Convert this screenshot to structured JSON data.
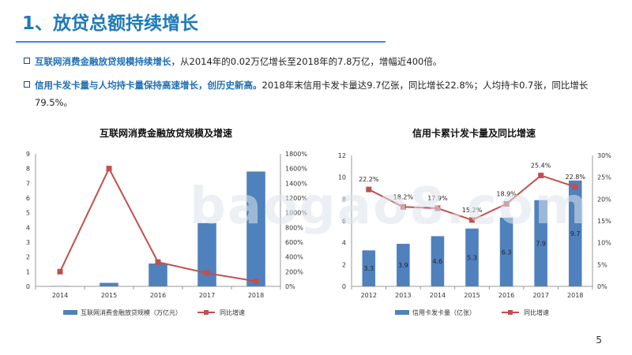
{
  "header": {
    "title": "1、放贷总额持续增长"
  },
  "bullets": [
    {
      "highlight": "互联网消费金融放贷规模持续增长",
      "text": "，从2014年的0.02万亿增长至2018年的7.8万亿，增幅近400倍。"
    },
    {
      "highlight": "信用卡发卡量与人均持卡量保持高速增长，创历史新高。",
      "text": "2018年末信用卡发卡量达9.7亿张，同比增长22.8%；人均持卡0.7张，同比增长79.5%。"
    }
  ],
  "watermark": "baogao8.com",
  "page_number": "5",
  "colors": {
    "bar": "#4f81bd",
    "line": "#c0504d",
    "title": "#1f7ab8",
    "highlight": "#1f6fb5"
  },
  "chart_data": [
    {
      "type": "bar",
      "title": "互联网消费金融放贷规模及增速",
      "categories": [
        "2014",
        "2015",
        "2016",
        "2017",
        "2018"
      ],
      "series": [
        {
          "name": "互联网消费金融放贷规模（万亿元）",
          "kind": "bar",
          "axis": "left",
          "values": [
            0.02,
            0.24,
            1.55,
            4.3,
            7.8
          ]
        },
        {
          "name": "同比增速",
          "kind": "line",
          "axis": "right",
          "values": [
            200,
            1600,
            330,
            180,
            70
          ]
        }
      ],
      "y_left": {
        "min": 0,
        "max": 9,
        "ticks": [
          "0",
          "1",
          "2",
          "3",
          "4",
          "5",
          "6",
          "7",
          "8",
          "9"
        ]
      },
      "y_right": {
        "min": 0,
        "max": 1800,
        "ticks": [
          "0%",
          "200%",
          "400%",
          "600%",
          "800%",
          "1000%",
          "1200%",
          "1400%",
          "1600%",
          "1800%"
        ]
      },
      "legend": [
        "互联网消费金融放贷规模（万亿元）",
        "同比增速"
      ],
      "legend_position": "bottom"
    },
    {
      "type": "bar",
      "title": "信用卡累计发卡量及同比增速",
      "categories": [
        "2012",
        "2013",
        "2014",
        "2015",
        "2016",
        "2017",
        "2018"
      ],
      "series": [
        {
          "name": "信用卡发卡量（亿张）",
          "kind": "bar",
          "axis": "left",
          "values": [
            3.3,
            3.9,
            4.6,
            5.3,
            6.3,
            7.9,
            9.7
          ],
          "labels": [
            "3.3",
            "3.9",
            "4.6",
            "5.3",
            "6.3",
            "7.9",
            "9.7"
          ]
        },
        {
          "name": "同比增速",
          "kind": "line",
          "axis": "right",
          "values": [
            22.2,
            18.2,
            17.9,
            15.2,
            18.9,
            25.4,
            22.8
          ],
          "labels": [
            "22.2%",
            "18.2%",
            "17.9%",
            "15.2%",
            "18.9%",
            "25.4%",
            "22.8%"
          ]
        }
      ],
      "y_left": {
        "min": 0,
        "max": 12,
        "ticks": [
          "0",
          "2",
          "4",
          "6",
          "8",
          "10",
          "12"
        ]
      },
      "y_right": {
        "min": 0,
        "max": 30,
        "ticks": [
          "0%",
          "5%",
          "10%",
          "15%",
          "20%",
          "25%",
          "30%"
        ]
      },
      "legend": [
        "信用卡发卡量（亿张）",
        "同比增速"
      ],
      "legend_position": "bottom"
    }
  ]
}
